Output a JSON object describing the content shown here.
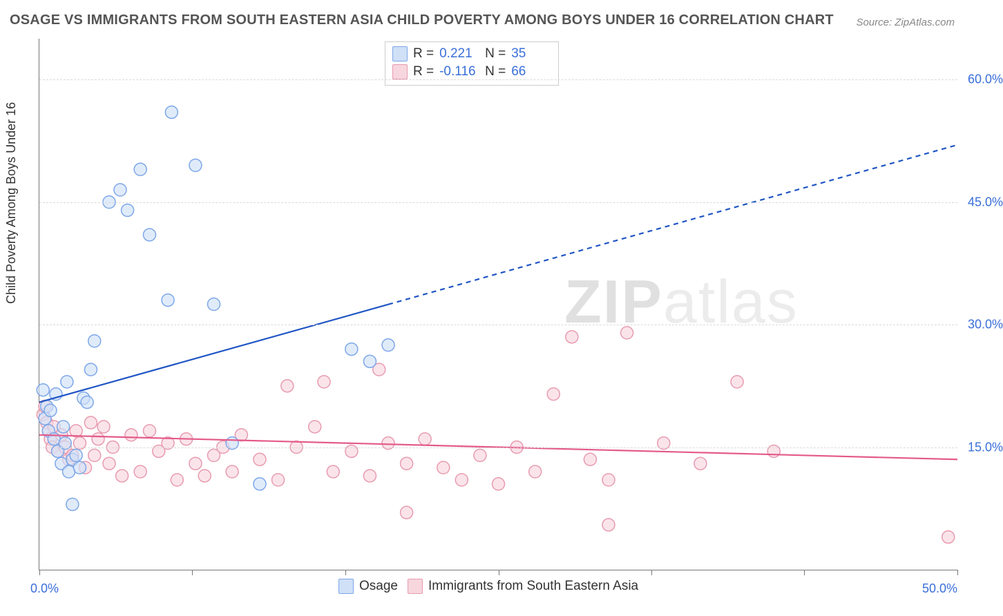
{
  "title": "OSAGE VS IMMIGRANTS FROM SOUTH EASTERN ASIA CHILD POVERTY AMONG BOYS UNDER 16 CORRELATION CHART",
  "source": "Source: ZipAtlas.com",
  "ylabel": "Child Poverty Among Boys Under 16",
  "chart": {
    "type": "scatter",
    "background_color": "#ffffff",
    "grid_color": "#d9d9d9",
    "axis_color": "#777777",
    "xlim": [
      0,
      50
    ],
    "ylim": [
      0,
      65
    ],
    "yticks": [
      15,
      30,
      45,
      60
    ],
    "ytick_labels": [
      "15.0%",
      "30.0%",
      "45.0%",
      "60.0%"
    ],
    "xtick_positions": [
      0,
      8.33,
      16.66,
      25,
      33.33,
      41.66,
      50
    ],
    "x_start_label": "0.0%",
    "x_end_label": "50.0%",
    "marker_radius": 9,
    "marker_stroke_width": 1.5,
    "trend_line_width": 2.2,
    "tick_label_color": "#3a6fd8",
    "tick_label_fontsize": 18,
    "title_color": "#555555",
    "title_fontsize": 20
  },
  "watermark": {
    "zip": "ZIP",
    "atlas": "atlas"
  },
  "legend_stats": {
    "rows": [
      {
        "swatch_fill": "#cfe0f7",
        "swatch_stroke": "#7da7e8",
        "r_label": "R =",
        "r_value": "0.221",
        "n_label": "N =",
        "n_value": "35"
      },
      {
        "swatch_fill": "#f7d6de",
        "swatch_stroke": "#e89bb0",
        "r_label": "R =",
        "r_value": "-0.116",
        "n_label": "N =",
        "n_value": "66"
      }
    ]
  },
  "legend_bottom": {
    "items": [
      {
        "swatch_fill": "#cfe0f7",
        "swatch_stroke": "#7da7e8",
        "label": "Osage"
      },
      {
        "swatch_fill": "#f7d6de",
        "swatch_stroke": "#e89bb0",
        "label": "Immigrants from South Eastern Asia"
      }
    ]
  },
  "series": [
    {
      "name": "Osage",
      "fill": "#cfe0f7",
      "stroke": "#7da7e8",
      "trend_color": "#1f55c4",
      "trend": {
        "y_at_x0": 20.5,
        "y_at_x50": 52.0,
        "solid_until_x": 19,
        "dash": "7 6"
      },
      "points": [
        [
          0.3,
          18.5
        ],
        [
          0.4,
          20.0
        ],
        [
          0.5,
          17.0
        ],
        [
          0.6,
          19.5
        ],
        [
          0.8,
          16.0
        ],
        [
          0.9,
          21.5
        ],
        [
          0.2,
          22.0
        ],
        [
          1.0,
          14.5
        ],
        [
          1.2,
          13.0
        ],
        [
          1.3,
          17.5
        ],
        [
          1.4,
          15.5
        ],
        [
          1.6,
          12.0
        ],
        [
          1.8,
          13.5
        ],
        [
          1.8,
          8.0
        ],
        [
          1.5,
          23.0
        ],
        [
          2.0,
          14.0
        ],
        [
          2.2,
          12.5
        ],
        [
          2.4,
          21.0
        ],
        [
          2.6,
          20.5
        ],
        [
          2.8,
          24.5
        ],
        [
          3.0,
          28.0
        ],
        [
          3.8,
          45.0
        ],
        [
          4.4,
          46.5
        ],
        [
          4.8,
          44.0
        ],
        [
          5.5,
          49.0
        ],
        [
          7.2,
          56.0
        ],
        [
          8.5,
          49.5
        ],
        [
          6.0,
          41.0
        ],
        [
          7.0,
          33.0
        ],
        [
          9.5,
          32.5
        ],
        [
          10.5,
          15.5
        ],
        [
          12.0,
          10.5
        ],
        [
          17.0,
          27.0
        ],
        [
          18.0,
          25.5
        ],
        [
          19.0,
          27.5
        ]
      ]
    },
    {
      "name": "Immigrants from South Eastern Asia",
      "fill": "#f7d6de",
      "stroke": "#e89bb0",
      "trend_color": "#e45a8a",
      "trend": {
        "y_at_x0": 16.5,
        "y_at_x50": 13.5,
        "solid_until_x": 50,
        "dash": ""
      },
      "points": [
        [
          0.2,
          19.0
        ],
        [
          0.3,
          20.0
        ],
        [
          0.4,
          18.0
        ],
        [
          0.5,
          17.0
        ],
        [
          0.6,
          16.0
        ],
        [
          0.7,
          15.0
        ],
        [
          0.8,
          17.5
        ],
        [
          1.0,
          14.5
        ],
        [
          1.2,
          16.5
        ],
        [
          1.4,
          15.0
        ],
        [
          1.6,
          13.5
        ],
        [
          1.8,
          14.0
        ],
        [
          2.0,
          17.0
        ],
        [
          2.2,
          15.5
        ],
        [
          2.5,
          12.5
        ],
        [
          2.8,
          18.0
        ],
        [
          3.0,
          14.0
        ],
        [
          3.2,
          16.0
        ],
        [
          3.5,
          17.5
        ],
        [
          3.8,
          13.0
        ],
        [
          4.0,
          15.0
        ],
        [
          4.5,
          11.5
        ],
        [
          5.0,
          16.5
        ],
        [
          5.5,
          12.0
        ],
        [
          6.0,
          17.0
        ],
        [
          6.5,
          14.5
        ],
        [
          7.0,
          15.5
        ],
        [
          7.5,
          11.0
        ],
        [
          8.0,
          16.0
        ],
        [
          8.5,
          13.0
        ],
        [
          9.0,
          11.5
        ],
        [
          9.5,
          14.0
        ],
        [
          10.0,
          15.0
        ],
        [
          10.5,
          12.0
        ],
        [
          11.0,
          16.5
        ],
        [
          12.0,
          13.5
        ],
        [
          13.0,
          11.0
        ],
        [
          13.5,
          22.5
        ],
        [
          14.0,
          15.0
        ],
        [
          15.0,
          17.5
        ],
        [
          15.5,
          23.0
        ],
        [
          16.0,
          12.0
        ],
        [
          17.0,
          14.5
        ],
        [
          18.0,
          11.5
        ],
        [
          18.5,
          24.5
        ],
        [
          19.0,
          15.5
        ],
        [
          20.0,
          13.0
        ],
        [
          20.0,
          7.0
        ],
        [
          21.0,
          16.0
        ],
        [
          22.0,
          12.5
        ],
        [
          23.0,
          11.0
        ],
        [
          24.0,
          14.0
        ],
        [
          25.0,
          10.5
        ],
        [
          26.0,
          15.0
        ],
        [
          27.0,
          12.0
        ],
        [
          28.0,
          21.5
        ],
        [
          29.0,
          28.5
        ],
        [
          30.0,
          13.5
        ],
        [
          31.0,
          11.0
        ],
        [
          32.0,
          29.0
        ],
        [
          31.0,
          5.5
        ],
        [
          34.0,
          15.5
        ],
        [
          36.0,
          13.0
        ],
        [
          38.0,
          23.0
        ],
        [
          40.0,
          14.5
        ],
        [
          49.5,
          4.0
        ]
      ]
    }
  ]
}
